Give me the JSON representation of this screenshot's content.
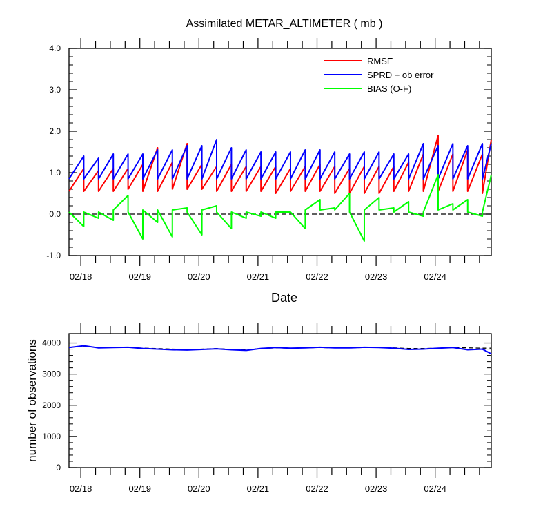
{
  "chart_data": [
    {
      "type": "line",
      "title": "Assimilated METAR_ALTIMETER ( mb )",
      "xlabel": "Date",
      "ylabel": "",
      "ylim": [
        -1.0,
        4.0
      ],
      "yticks": [
        -1.0,
        0.0,
        1.0,
        2.0,
        3.0,
        4.0
      ],
      "ytick_labels": [
        "-1.0",
        "0.0",
        "1.0",
        "2.0",
        "3.0",
        "4.0"
      ],
      "xlim": [
        17.8,
        24.95
      ],
      "xticks": [
        18,
        19,
        20,
        21,
        22,
        23,
        24
      ],
      "xtick_labels": [
        "02/18",
        "02/19",
        "02/20",
        "02/21",
        "02/22",
        "02/23",
        "02/24"
      ],
      "legend_position": "top-right",
      "reference_line": 0.0,
      "series": [
        {
          "name": "RMSE",
          "color": "#ff0000",
          "x": [
            17.8,
            18.05,
            18.05,
            18.3,
            18.3,
            18.55,
            18.55,
            18.8,
            18.8,
            19.05,
            19.05,
            19.3,
            19.3,
            19.55,
            19.55,
            19.8,
            19.8,
            20.05,
            20.05,
            20.3,
            20.3,
            20.55,
            20.55,
            20.8,
            20.8,
            21.05,
            21.05,
            21.3,
            21.3,
            21.55,
            21.55,
            21.8,
            21.8,
            22.05,
            22.05,
            22.3,
            22.3,
            22.55,
            22.55,
            22.8,
            22.8,
            23.05,
            23.05,
            23.3,
            23.3,
            23.55,
            23.55,
            23.8,
            23.8,
            24.05,
            24.05,
            24.3,
            24.3,
            24.55,
            24.55,
            24.8,
            24.8,
            24.95
          ],
          "values": [
            0.55,
            1.1,
            0.55,
            1.05,
            0.55,
            1.1,
            0.55,
            1.1,
            0.6,
            1.2,
            0.55,
            1.6,
            0.55,
            1.25,
            0.6,
            1.7,
            0.6,
            1.2,
            0.6,
            1.15,
            0.55,
            1.2,
            0.55,
            1.15,
            0.55,
            1.15,
            0.55,
            1.15,
            0.5,
            1.1,
            0.55,
            1.15,
            0.55,
            1.2,
            0.55,
            1.15,
            0.5,
            1.1,
            0.5,
            1.15,
            0.5,
            1.15,
            0.5,
            1.15,
            0.55,
            1.25,
            0.55,
            1.45,
            0.55,
            1.9,
            0.55,
            1.45,
            0.55,
            1.55,
            0.55,
            1.45,
            0.5,
            1.8
          ]
        },
        {
          "name": "SPRD + ob error",
          "color": "#0000ff",
          "x": [
            17.8,
            18.05,
            18.05,
            18.3,
            18.3,
            18.55,
            18.55,
            18.8,
            18.8,
            19.05,
            19.05,
            19.3,
            19.3,
            19.55,
            19.55,
            19.8,
            19.8,
            20.05,
            20.05,
            20.3,
            20.3,
            20.55,
            20.55,
            20.8,
            20.8,
            21.05,
            21.05,
            21.3,
            21.3,
            21.55,
            21.55,
            21.8,
            21.8,
            22.05,
            22.05,
            22.3,
            22.3,
            22.55,
            22.55,
            22.8,
            22.8,
            23.05,
            23.05,
            23.3,
            23.3,
            23.55,
            23.55,
            23.8,
            23.8,
            24.05,
            24.05,
            24.3,
            24.3,
            24.55,
            24.55,
            24.8,
            24.8,
            24.95
          ],
          "values": [
            0.85,
            1.4,
            0.85,
            1.35,
            0.85,
            1.45,
            0.85,
            1.45,
            0.85,
            1.45,
            0.85,
            1.55,
            0.85,
            1.55,
            0.85,
            1.65,
            0.85,
            1.65,
            0.85,
            1.8,
            0.85,
            1.6,
            0.85,
            1.55,
            0.85,
            1.5,
            0.85,
            1.5,
            0.85,
            1.5,
            0.85,
            1.55,
            0.85,
            1.55,
            0.85,
            1.5,
            0.85,
            1.45,
            0.85,
            1.5,
            0.85,
            1.5,
            0.85,
            1.45,
            0.85,
            1.45,
            0.85,
            1.7,
            0.85,
            1.65,
            0.85,
            1.7,
            0.85,
            1.65,
            0.85,
            1.7,
            0.85,
            1.7
          ]
        },
        {
          "name": "BIAS (O-F)",
          "color": "#00ff00",
          "x": [
            17.8,
            18.05,
            18.05,
            18.3,
            18.3,
            18.55,
            18.55,
            18.8,
            18.8,
            19.05,
            19.05,
            19.3,
            19.3,
            19.55,
            19.55,
            19.8,
            19.8,
            20.05,
            20.05,
            20.3,
            20.3,
            20.55,
            20.55,
            20.8,
            20.8,
            21.05,
            21.05,
            21.3,
            21.3,
            21.55,
            21.55,
            21.8,
            21.8,
            22.05,
            22.05,
            22.3,
            22.3,
            22.55,
            22.55,
            22.8,
            22.8,
            23.05,
            23.05,
            23.3,
            23.3,
            23.55,
            23.55,
            23.8,
            23.8,
            24.05,
            24.05,
            24.3,
            24.3,
            24.55,
            24.55,
            24.8,
            24.8,
            24.95
          ],
          "values": [
            0.05,
            -0.3,
            0.05,
            -0.1,
            0.05,
            -0.15,
            0.1,
            0.45,
            0.05,
            -0.6,
            0.1,
            -0.2,
            0.1,
            -0.55,
            0.1,
            0.15,
            0.05,
            -0.5,
            0.1,
            0.2,
            0.05,
            -0.35,
            0.05,
            -0.1,
            0.05,
            -0.05,
            0.05,
            -0.1,
            0.05,
            0.05,
            0.05,
            -0.35,
            0.1,
            0.35,
            0.1,
            0.15,
            0.1,
            0.5,
            0.05,
            -0.65,
            0.1,
            0.4,
            0.1,
            0.15,
            0.05,
            0.3,
            0.05,
            -0.05,
            0.05,
            0.95,
            0.1,
            0.25,
            0.1,
            0.35,
            0.05,
            -0.05,
            0.05,
            0.95
          ]
        }
      ]
    },
    {
      "type": "line",
      "title": "",
      "xlabel": "",
      "ylabel": "number of observations",
      "ylim": [
        0,
        4300
      ],
      "yticks": [
        0,
        1000,
        2000,
        3000,
        4000
      ],
      "ytick_labels": [
        "0",
        "1000",
        "2000",
        "3000",
        "4000"
      ],
      "xlim": [
        17.8,
        24.95
      ],
      "xticks": [
        18,
        19,
        20,
        21,
        22,
        23,
        24
      ],
      "xtick_labels": [
        "02/18",
        "02/19",
        "02/20",
        "02/21",
        "02/22",
        "02/23",
        "02/24"
      ],
      "series": [
        {
          "name": "",
          "color": "#000000",
          "dashed": true,
          "x": [
            17.8,
            18.05,
            18.3,
            18.55,
            18.8,
            19.05,
            19.3,
            19.55,
            19.8,
            20.05,
            20.3,
            20.55,
            20.8,
            21.05,
            21.3,
            21.55,
            21.8,
            22.05,
            22.3,
            22.55,
            22.8,
            23.05,
            23.3,
            23.55,
            23.8,
            24.05,
            24.3,
            24.55,
            24.8,
            24.95
          ],
          "values": [
            3850,
            3900,
            3850,
            3850,
            3860,
            3830,
            3820,
            3800,
            3790,
            3800,
            3820,
            3790,
            3780,
            3820,
            3840,
            3830,
            3840,
            3850,
            3840,
            3840,
            3850,
            3850,
            3840,
            3820,
            3820,
            3830,
            3850,
            3840,
            3830,
            3830
          ]
        },
        {
          "name": "",
          "color": "#0000ff",
          "x": [
            17.8,
            18.05,
            18.3,
            18.55,
            18.8,
            19.05,
            19.3,
            19.55,
            19.8,
            20.05,
            20.3,
            20.55,
            20.8,
            21.05,
            21.3,
            21.55,
            21.8,
            22.05,
            22.3,
            22.55,
            22.8,
            23.05,
            23.3,
            23.55,
            23.8,
            24.05,
            24.3,
            24.55,
            24.8,
            24.95
          ],
          "values": [
            3850,
            3910,
            3840,
            3850,
            3860,
            3820,
            3800,
            3780,
            3770,
            3790,
            3810,
            3780,
            3760,
            3820,
            3850,
            3830,
            3840,
            3860,
            3840,
            3840,
            3860,
            3850,
            3830,
            3790,
            3800,
            3830,
            3850,
            3780,
            3800,
            3650
          ]
        }
      ]
    }
  ]
}
